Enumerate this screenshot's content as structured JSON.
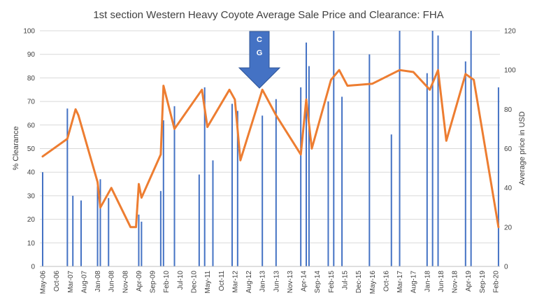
{
  "chart_data": {
    "type": "bar+line",
    "title": "1st section Western Heavy Coyote Average Sale Price and Clearance: FHA",
    "ylabel_left": "% Clearance",
    "ylabel_right": "Average price in USD",
    "ylim_left": [
      0,
      100
    ],
    "ylim_right": [
      0,
      120
    ],
    "yticks_left": [
      "0",
      "10",
      "20",
      "30",
      "40",
      "50",
      "60",
      "70",
      "80",
      "90",
      "100"
    ],
    "yticks_right": [
      "0",
      "20",
      "40",
      "60",
      "80",
      "100",
      "120"
    ],
    "xticks": [
      "May-06",
      "Oct-06",
      "Mar-07",
      "Aug-07",
      "Jan-08",
      "Jun-08",
      "Nov-08",
      "Apr-09",
      "Sep-09",
      "Feb-10",
      "Jul-10",
      "Dec-10",
      "May-11",
      "Oct-11",
      "Mar-12",
      "Aug-12",
      "Jan-13",
      "Jun-13",
      "Nov-13",
      "Apr-14",
      "Sep-14",
      "Feb-15",
      "Jul-15",
      "Dec-15",
      "May-16",
      "Oct-16",
      "Mar-17",
      "Aug-17",
      "Jan-18",
      "Jun-18",
      "Nov-18",
      "Apr-19",
      "Sep-19",
      "Feb-20"
    ],
    "grid": true,
    "annotation": {
      "lines": [
        "C",
        "G"
      ],
      "x": "Jan-13",
      "shape": "down-arrow"
    },
    "series": [
      {
        "type": "bar",
        "axis": "left",
        "color": "#4472C4",
        "x": [
          "2006-05",
          "2007-02",
          "2007-04",
          "2007-07",
          "2008-01",
          "2008-02",
          "2008-05",
          "2009-04",
          "2009-05",
          "2009-12",
          "2010-01",
          "2010-05",
          "2011-02",
          "2011-04",
          "2011-07",
          "2012-02",
          "2012-04",
          "2013-01",
          "2013-06",
          "2014-03",
          "2014-05",
          "2014-06",
          "2015-01",
          "2015-03",
          "2015-06",
          "2016-04",
          "2016-12",
          "2017-03",
          "2018-01",
          "2018-03",
          "2018-05",
          "2019-03",
          "2019-05",
          "2020-03"
        ],
        "values": [
          40,
          67,
          30,
          28,
          34,
          37,
          29,
          22,
          19,
          32,
          62,
          68,
          39,
          76,
          45,
          69,
          66,
          64,
          71,
          76,
          95,
          85,
          70,
          100,
          72,
          90,
          56,
          100,
          82,
          100,
          98,
          87,
          100,
          76
        ]
      },
      {
        "type": "line",
        "axis": "right",
        "color": "#ED7D31",
        "x": [
          "2006-05",
          "2007-02",
          "2007-05",
          "2007-06",
          "2008-01",
          "2008-02",
          "2008-06",
          "2009-01",
          "2009-03",
          "2009-04",
          "2009-05",
          "2009-12",
          "2010-01",
          "2010-05",
          "2011-03",
          "2011-05",
          "2012-01",
          "2012-03",
          "2012-05",
          "2013-01",
          "2013-06",
          "2014-03",
          "2014-05",
          "2014-07",
          "2015-02",
          "2015-05",
          "2015-08",
          "2016-05",
          "2017-03",
          "2017-08",
          "2018-02",
          "2018-05",
          "2018-08",
          "2019-03",
          "2019-06",
          "2020-03"
        ],
        "values": [
          56,
          65,
          80,
          77,
          43,
          30,
          40,
          20,
          20,
          42,
          35,
          57,
          92,
          70,
          90,
          71,
          90,
          85,
          54,
          90,
          77,
          57,
          85,
          60,
          95,
          100,
          92,
          93,
          100,
          99,
          90,
          100,
          64,
          98,
          95,
          20
        ]
      }
    ]
  }
}
